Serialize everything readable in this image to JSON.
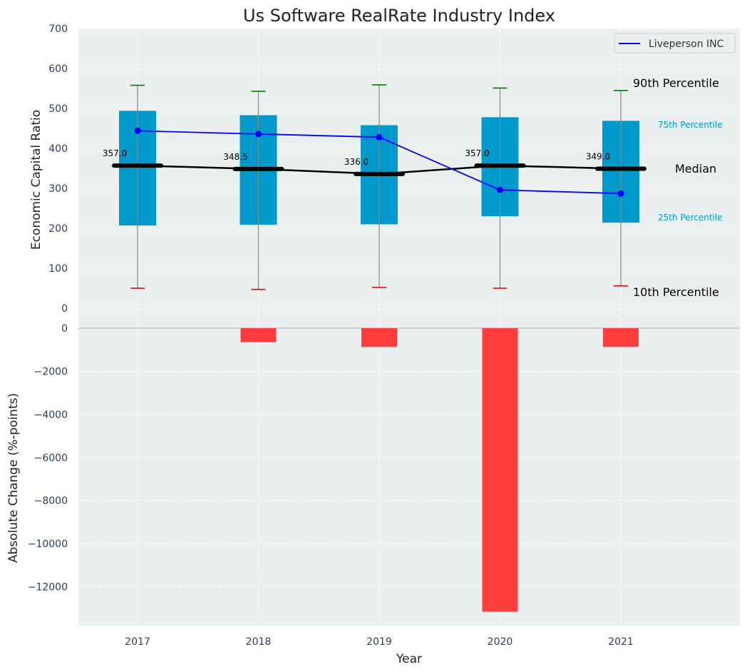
{
  "chart_data": {
    "type": "box-and-bar",
    "title": "Us Software RealRate Industry Index",
    "xlabel": "Year",
    "categories": [
      "2017",
      "2018",
      "2019",
      "2020",
      "2021"
    ],
    "top_panel": {
      "ylabel": "Economic Capital Ratio",
      "ylim": [
        0,
        700
      ],
      "yticks": [
        "0",
        "100",
        "200",
        "300",
        "400",
        "500",
        "600",
        "700"
      ],
      "grid": true,
      "legend": "top-right",
      "p10": [
        50,
        47,
        52,
        50,
        56
      ],
      "p25": [
        207,
        209,
        210,
        230,
        214
      ],
      "median": [
        357.0,
        348.5,
        336.0,
        357.0,
        349.0
      ],
      "median_labels": [
        "357.0",
        "348.5",
        "336.0",
        "357.0",
        "349.0"
      ],
      "p75": [
        494,
        483,
        458,
        478,
        469
      ],
      "p90": [
        558,
        543,
        559,
        551,
        545
      ],
      "company": {
        "name": "Liveperson INC",
        "values": [
          444,
          436,
          428,
          296,
          287
        ]
      },
      "annotations": {
        "p90": "90th Percentile",
        "p75": "75th Percentile",
        "median": "Median",
        "p25": "25th Percentile",
        "p10": "10th Percentile"
      }
    },
    "bottom_panel": {
      "ylabel": "Absolute Change (%-points)",
      "ylim": [
        -13800,
        0
      ],
      "yticks": [
        "0",
        "−2000",
        "−4000",
        "−6000",
        "−8000",
        "−10000",
        "−12000"
      ],
      "values": [
        0,
        -650,
        -870,
        -13150,
        -870
      ],
      "grid": true
    },
    "colors": {
      "box": "#0099cc",
      "company": "#0000ff",
      "median": "#000000",
      "p90_cap": "#008000",
      "p10_cap": "#e00000",
      "change_bar": "#ff3d3d",
      "panel_bg": "#ebeff0",
      "p75_label": "#0099cc"
    }
  }
}
